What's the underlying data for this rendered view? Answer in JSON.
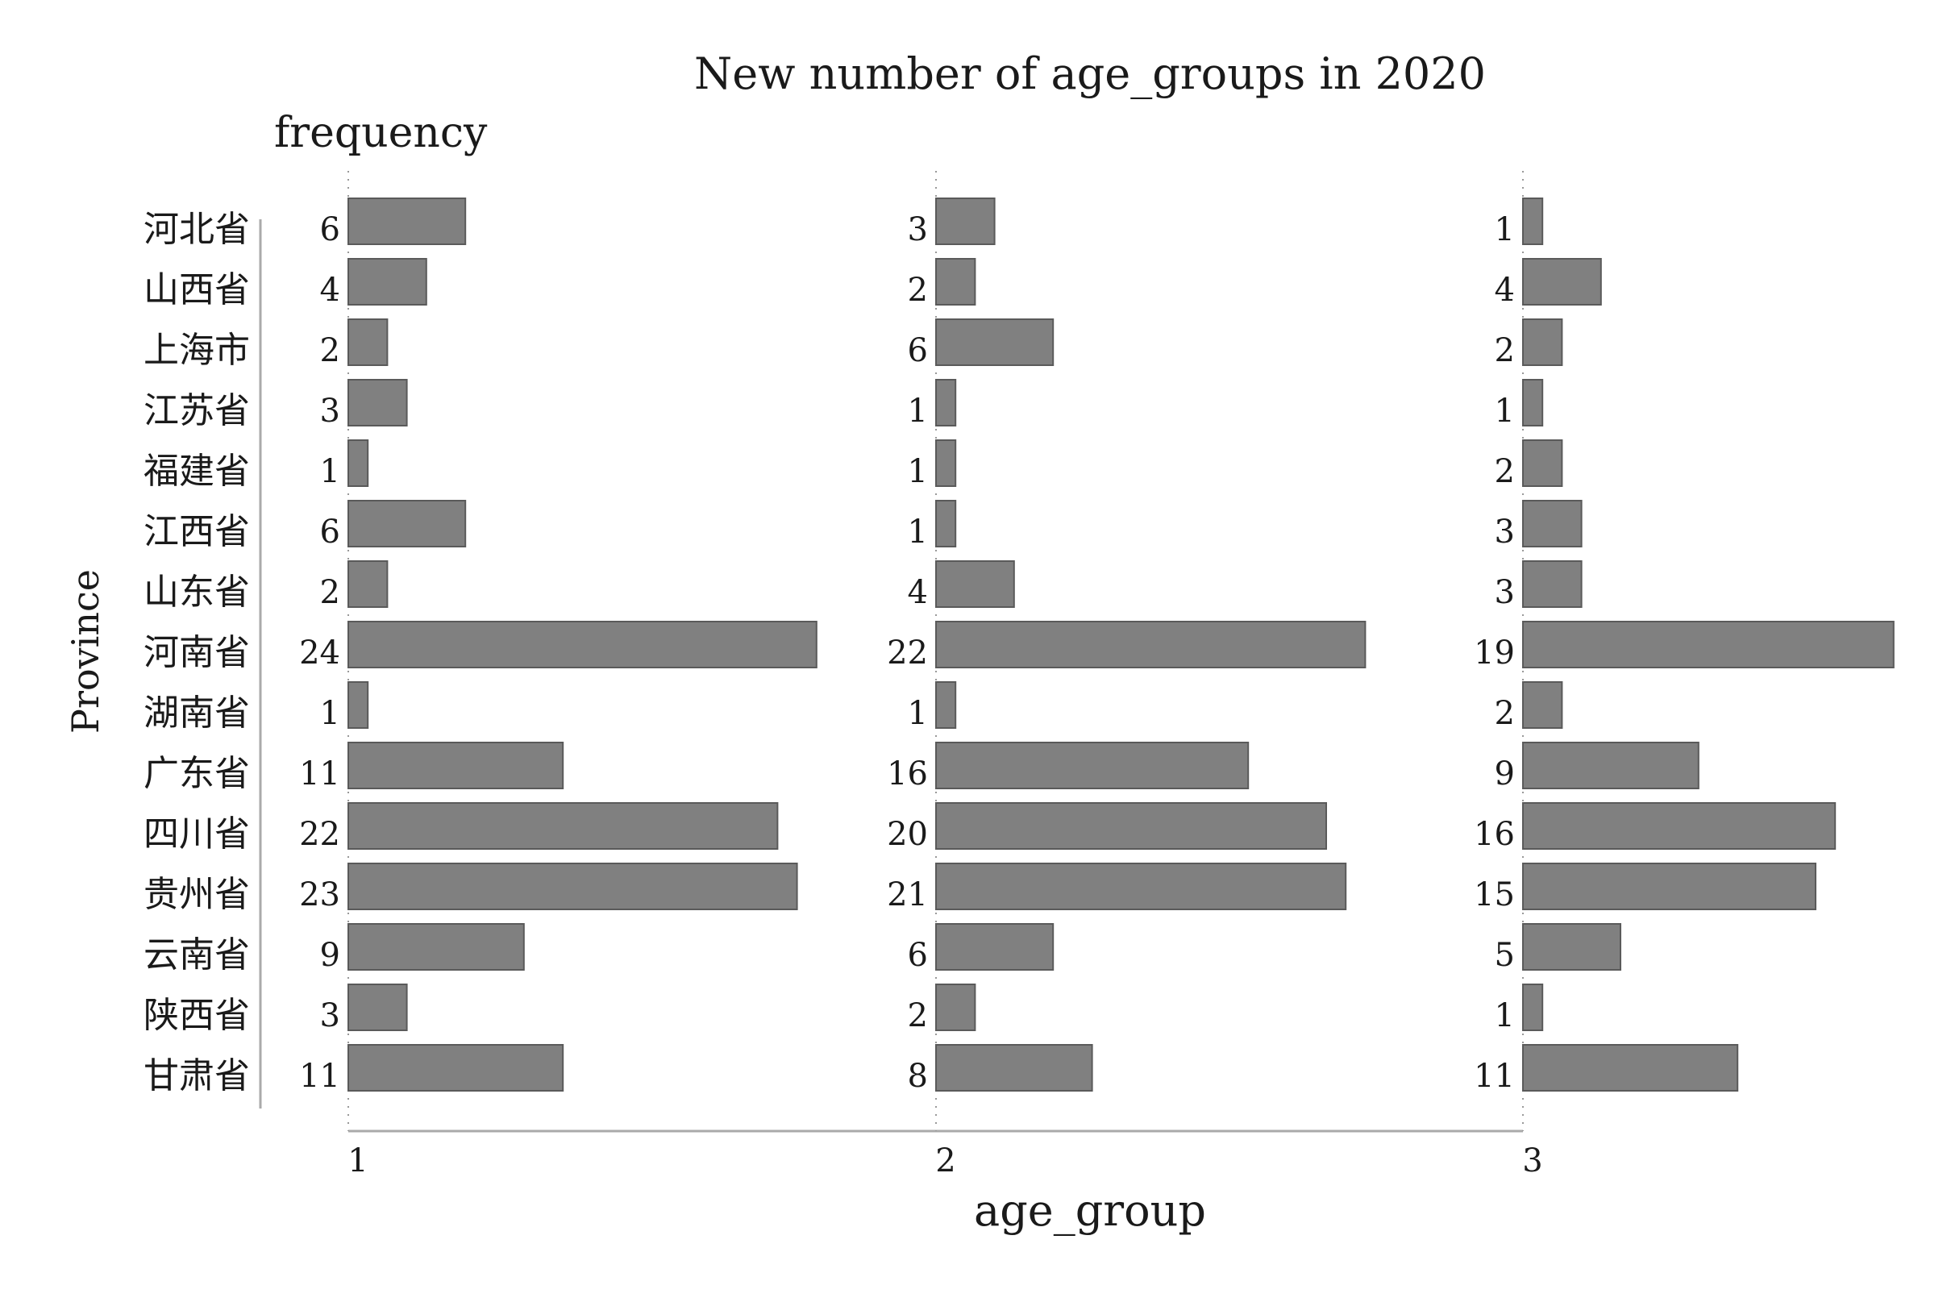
{
  "chart_data": {
    "type": "bar",
    "orientation": "horizontal",
    "title": "New number of age_groups in 2020",
    "value_label": "frequency",
    "xlabel": "age_group",
    "ylabel": "Province",
    "categories": [
      "河北省",
      "山西省",
      "上海市",
      "江苏省",
      "福建省",
      "江西省",
      "山东省",
      "河南省",
      "湖南省",
      "广东省",
      "四川省",
      "贵州省",
      "云南省",
      "陕西省",
      "甘肃省"
    ],
    "series": [
      {
        "name": "1",
        "values": [
          6,
          4,
          2,
          3,
          1,
          6,
          2,
          24,
          1,
          11,
          22,
          23,
          9,
          3,
          11
        ]
      },
      {
        "name": "2",
        "values": [
          3,
          2,
          6,
          1,
          1,
          1,
          4,
          22,
          1,
          16,
          20,
          21,
          6,
          2,
          8
        ]
      },
      {
        "name": "3",
        "values": [
          1,
          4,
          2,
          1,
          2,
          3,
          3,
          19,
          2,
          9,
          16,
          15,
          5,
          1,
          11
        ]
      }
    ],
    "grid": false,
    "legend": "none",
    "bar_color": "#808080",
    "bar_edge_color": "#5a5a5a"
  }
}
